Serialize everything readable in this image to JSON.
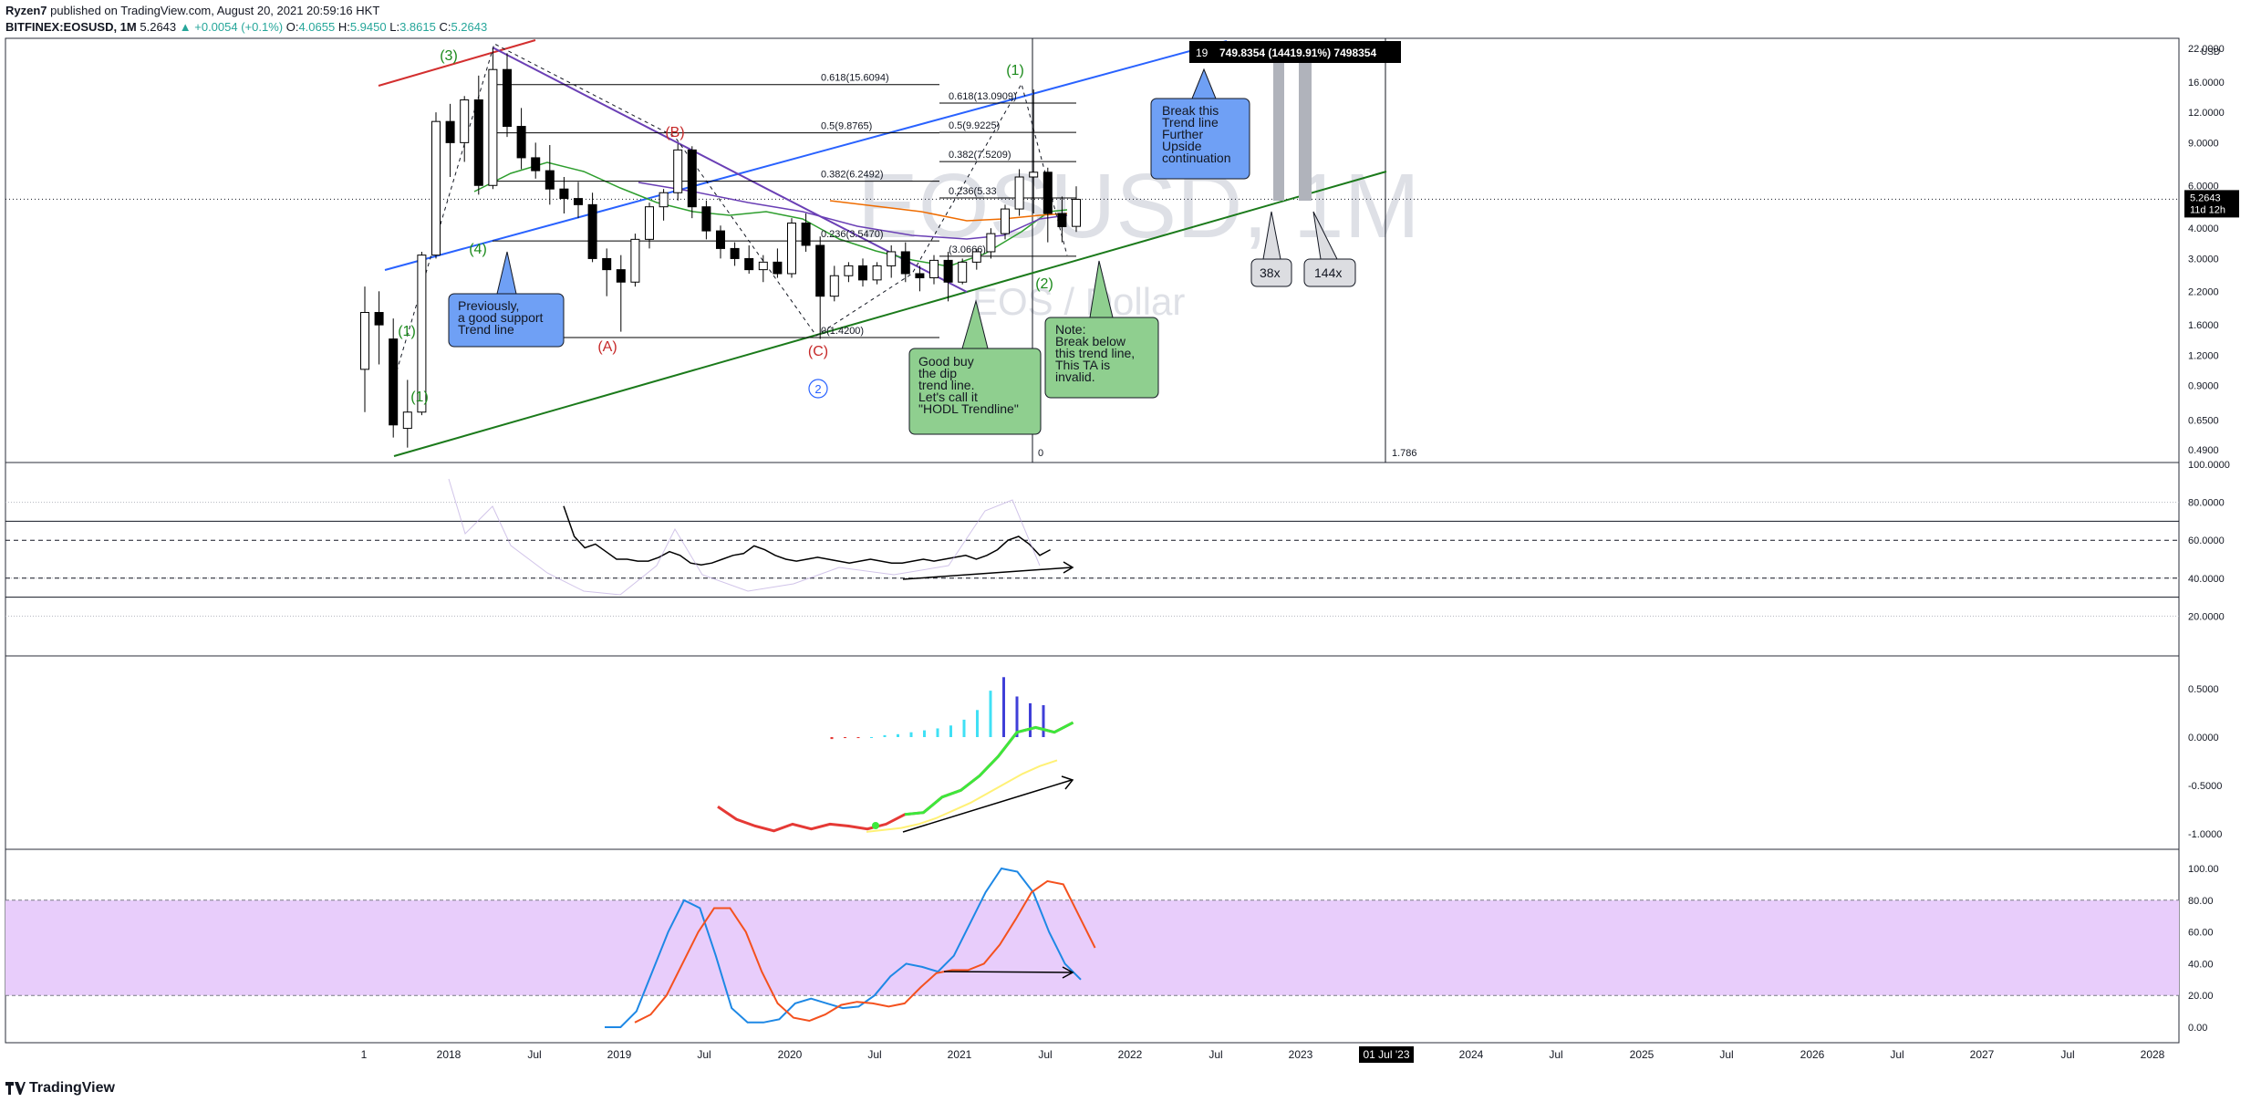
{
  "header": {
    "author": "Ryzen7",
    "published_text": "published on TradingView.com, August 20, 2021 20:59:16 HKT",
    "symbol": "BITFINEX:EOSUSD, 1M",
    "last": "5.2643",
    "change": "▲ +0.0054 (+0.1%)",
    "o_label": "O:",
    "o_value": "4.0655",
    "h_label": "H:",
    "h_value": "5.9450",
    "l_label": "L:",
    "l_value": "3.8615",
    "c_label": "C:",
    "c_value": "5.2643"
  },
  "footer": {
    "brand": "TradingView"
  },
  "watermark": {
    "symbol": "EOSUSD, 1M",
    "name": "EOS / Dollar"
  },
  "colors": {
    "up": "#ffffff",
    "down": "#000000",
    "blue_line": "#2962ff",
    "green_line": "#1b7a1b",
    "red_line": "#d32f2f",
    "purple_line": "#6a3fb5",
    "fib_line": "#000000",
    "stoch_band": "#e8cdfb",
    "callout_blue": "#6fa0f5",
    "callout_green": "#8fcf8f",
    "callout_gray": "#dcdde1"
  },
  "chart_data": {
    "type": "candlestick",
    "x_axis": {
      "ticks": [
        "1",
        "2018",
        "Jul",
        "2019",
        "Jul",
        "2020",
        "Jul",
        "2021",
        "Jul",
        "2022",
        "Jul",
        "2023",
        "01 Jul '23",
        "2024",
        "Jul",
        "2025",
        "Jul",
        "2026",
        "Jul",
        "2027",
        "Jul",
        "2028"
      ]
    },
    "price_axis": {
      "scale": "log",
      "unit": "USD",
      "ticks": [
        "22.0000",
        "16.0000",
        "12.0000",
        "9.0000",
        "6.0000",
        "4.0000",
        "3.0000",
        "2.2000",
        "1.6000",
        "1.2000",
        "0.9000",
        "0.6500",
        "0.4900"
      ],
      "last_price": "5.2643",
      "countdown": "11d 12h"
    },
    "candles": [
      {
        "o": 1.05,
        "h": 2.3,
        "l": 0.7,
        "c": 1.8
      },
      {
        "o": 1.8,
        "h": 2.2,
        "l": 1.1,
        "c": 1.6
      },
      {
        "o": 1.4,
        "h": 1.7,
        "l": 0.55,
        "c": 0.62
      },
      {
        "o": 0.6,
        "h": 0.95,
        "l": 0.5,
        "c": 0.7
      },
      {
        "o": 0.7,
        "h": 3.2,
        "l": 0.68,
        "c": 3.1
      },
      {
        "o": 3.1,
        "h": 12.0,
        "l": 3.0,
        "c": 11.0
      },
      {
        "o": 11.0,
        "h": 13.0,
        "l": 6.5,
        "c": 9.0
      },
      {
        "o": 9.0,
        "h": 14.0,
        "l": 7.5,
        "c": 13.5
      },
      {
        "o": 13.5,
        "h": 17.0,
        "l": 5.5,
        "c": 6.0
      },
      {
        "o": 6.0,
        "h": 22.0,
        "l": 5.8,
        "c": 18.0
      },
      {
        "o": 18.0,
        "h": 21.0,
        "l": 9.5,
        "c": 10.5
      },
      {
        "o": 10.5,
        "h": 12.5,
        "l": 7.0,
        "c": 7.8
      },
      {
        "o": 7.8,
        "h": 9.0,
        "l": 6.4,
        "c": 6.9
      },
      {
        "o": 6.9,
        "h": 8.8,
        "l": 5.0,
        "c": 5.8
      },
      {
        "o": 5.8,
        "h": 6.5,
        "l": 4.6,
        "c": 5.3
      },
      {
        "o": 5.3,
        "h": 6.2,
        "l": 4.4,
        "c": 5.0
      },
      {
        "o": 5.0,
        "h": 5.6,
        "l": 2.9,
        "c": 3.0
      },
      {
        "o": 3.0,
        "h": 3.3,
        "l": 2.1,
        "c": 2.7
      },
      {
        "o": 2.7,
        "h": 3.1,
        "l": 1.5,
        "c": 2.4
      },
      {
        "o": 2.4,
        "h": 3.8,
        "l": 2.3,
        "c": 3.6
      },
      {
        "o": 3.6,
        "h": 5.1,
        "l": 3.3,
        "c": 4.9
      },
      {
        "o": 4.9,
        "h": 5.8,
        "l": 4.3,
        "c": 5.6
      },
      {
        "o": 5.6,
        "h": 8.9,
        "l": 5.2,
        "c": 8.4
      },
      {
        "o": 8.4,
        "h": 8.7,
        "l": 4.4,
        "c": 4.9
      },
      {
        "o": 4.9,
        "h": 5.2,
        "l": 3.6,
        "c": 3.9
      },
      {
        "o": 3.9,
        "h": 4.1,
        "l": 3.0,
        "c": 3.3
      },
      {
        "o": 3.3,
        "h": 3.5,
        "l": 2.8,
        "c": 3.0
      },
      {
        "o": 3.0,
        "h": 3.4,
        "l": 2.6,
        "c": 2.7
      },
      {
        "o": 2.7,
        "h": 3.1,
        "l": 2.4,
        "c": 2.9
      },
      {
        "o": 2.9,
        "h": 3.3,
        "l": 2.5,
        "c": 2.6
      },
      {
        "o": 2.6,
        "h": 4.4,
        "l": 2.5,
        "c": 4.2
      },
      {
        "o": 4.2,
        "h": 4.6,
        "l": 3.2,
        "c": 3.4
      },
      {
        "o": 3.4,
        "h": 3.7,
        "l": 1.4,
        "c": 2.1
      },
      {
        "o": 2.1,
        "h": 2.8,
        "l": 2.0,
        "c": 2.55
      },
      {
        "o": 2.55,
        "h": 2.9,
        "l": 2.4,
        "c": 2.8
      },
      {
        "o": 2.8,
        "h": 3.0,
        "l": 2.3,
        "c": 2.45
      },
      {
        "o": 2.45,
        "h": 2.9,
        "l": 2.35,
        "c": 2.8
      },
      {
        "o": 2.8,
        "h": 3.4,
        "l": 2.5,
        "c": 3.2
      },
      {
        "o": 3.2,
        "h": 3.5,
        "l": 2.4,
        "c": 2.6
      },
      {
        "o": 2.6,
        "h": 2.8,
        "l": 2.2,
        "c": 2.5
      },
      {
        "o": 2.5,
        "h": 3.1,
        "l": 2.35,
        "c": 2.95
      },
      {
        "o": 2.95,
        "h": 3.2,
        "l": 2.0,
        "c": 2.4
      },
      {
        "o": 2.4,
        "h": 3.0,
        "l": 2.35,
        "c": 2.9
      },
      {
        "o": 2.9,
        "h": 3.3,
        "l": 2.7,
        "c": 3.2
      },
      {
        "o": 3.2,
        "h": 4.0,
        "l": 3.0,
        "c": 3.8
      },
      {
        "o": 3.8,
        "h": 5.0,
        "l": 3.6,
        "c": 4.8
      },
      {
        "o": 4.8,
        "h": 7.0,
        "l": 4.5,
        "c": 6.5
      },
      {
        "o": 6.5,
        "h": 14.9,
        "l": 4.6,
        "c": 6.8
      },
      {
        "o": 6.8,
        "h": 7.1,
        "l": 3.5,
        "c": 4.6
      },
      {
        "o": 4.6,
        "h": 5.4,
        "l": 3.5,
        "c": 4.06
      },
      {
        "o": 4.07,
        "h": 5.95,
        "l": 3.86,
        "c": 5.26
      }
    ],
    "fib_levels": [
      {
        "label": "0.618(15.6094)",
        "price": 15.6094,
        "group": "A"
      },
      {
        "label": "0.5(9.8765)",
        "price": 9.8765,
        "group": "A"
      },
      {
        "label": "0.382(6.2492)",
        "price": 6.2492,
        "group": "A"
      },
      {
        "label": "0.236(3.5470)",
        "price": 3.547,
        "group": "A"
      },
      {
        "label": "0(1.4200)",
        "price": 1.42,
        "group": "A"
      },
      {
        "label": "0.618(13.0909)",
        "price": 13.0909,
        "group": "B"
      },
      {
        "label": "0.5(9.9225)",
        "price": 9.9225,
        "group": "B"
      },
      {
        "label": "0.382(7.5209)",
        "price": 7.5209,
        "group": "B"
      },
      {
        "label": "0.236(5.33",
        "price": 5.33,
        "group": "B"
      },
      {
        "label": "(3.0666)",
        "price": 3.0666,
        "group": "B"
      }
    ],
    "wave_labels": [
      {
        "text": "(3)",
        "color": "#1b8a1b"
      },
      {
        "text": "(4)",
        "color": "#1b8a1b"
      },
      {
        "text": "(1)",
        "color": "#1b8a1b"
      },
      {
        "text": "(1)",
        "color": "#1b8a1b"
      },
      {
        "text": "(1)",
        "color": "#1b8a1b"
      },
      {
        "text": "(2)",
        "color": "#1b8a1b"
      },
      {
        "text": "(B)",
        "color": "#c62828"
      },
      {
        "text": "(A)",
        "color": "#c62828"
      },
      {
        "text": "(C)",
        "color": "#c62828"
      },
      {
        "text": "2",
        "color": "#2962ff"
      }
    ],
    "callouts": {
      "previously": "Previously,\na good support\nTrend line",
      "hodl": "Good buy\nthe dip\ntrend line.\nLet's call it\n\"HODL Trendline\"",
      "note": "Note:\nBreak below\nthis trend line,\nThis TA is\ninvalid.",
      "break": "Break this\nTrend line\nFurther\nUpside\ncontinuation",
      "x38": "38x",
      "x144": "144x"
    },
    "measure_label": "749.8354 (14419.91%) 7498354",
    "measure_prefix": "19",
    "misc_labels": {
      "zero": "0",
      "ratio": "1.786"
    },
    "rsi": {
      "ticks": [
        "100.0000",
        "80.0000",
        "60.0000",
        "40.0000",
        "20.0000"
      ],
      "values": [
        78,
        62,
        56,
        58,
        54,
        50,
        50,
        49,
        49,
        51,
        54,
        52,
        48,
        47,
        48,
        50,
        52,
        53,
        57,
        55,
        52,
        50,
        49,
        50,
        51,
        50,
        49,
        48,
        49,
        50,
        49,
        48,
        48,
        49,
        50,
        49,
        50,
        51,
        52,
        50,
        52,
        55,
        60,
        62,
        58,
        52,
        55
      ]
    },
    "macd": {
      "ticks": [
        "0.5000",
        "0.0000",
        "-0.5000",
        "-1.0000"
      ],
      "macd_line": [
        -0.72,
        -0.85,
        -0.92,
        -0.97,
        -0.9,
        -0.95,
        -0.9,
        -0.92,
        -0.95,
        -0.9,
        -0.8,
        -0.78,
        -0.62,
        -0.55,
        -0.4,
        -0.2,
        0.05,
        0.1,
        0.05,
        0.15
      ],
      "signal_line": [
        -0.98,
        -0.96,
        -0.94,
        -0.9,
        -0.84,
        -0.76,
        -0.68,
        -0.58,
        -0.48,
        -0.38,
        -0.3,
        -0.24
      ],
      "histogram": [
        -0.02,
        -0.01,
        -0.01,
        0.0,
        0.02,
        0.03,
        0.05,
        0.07,
        0.09,
        0.12,
        0.18,
        0.28,
        0.48,
        0.62,
        0.42,
        0.35,
        0.33
      ]
    },
    "stoch": {
      "ticks": [
        "100.00",
        "80.00",
        "60.00",
        "40.00",
        "20.00",
        "0.00"
      ],
      "band": [
        20,
        80
      ],
      "k_line": [
        0,
        0,
        10,
        35,
        60,
        80,
        75,
        45,
        12,
        3,
        3,
        5,
        15,
        18,
        15,
        12,
        13,
        20,
        32,
        40,
        38,
        35,
        45,
        65,
        85,
        100,
        98,
        85,
        60,
        40,
        30
      ],
      "d_line": [
        3,
        8,
        20,
        40,
        60,
        75,
        75,
        60,
        35,
        15,
        6,
        4,
        8,
        14,
        16,
        15,
        13,
        15,
        25,
        34,
        36,
        36,
        40,
        52,
        68,
        85,
        92,
        90,
        70,
        50
      ]
    }
  }
}
